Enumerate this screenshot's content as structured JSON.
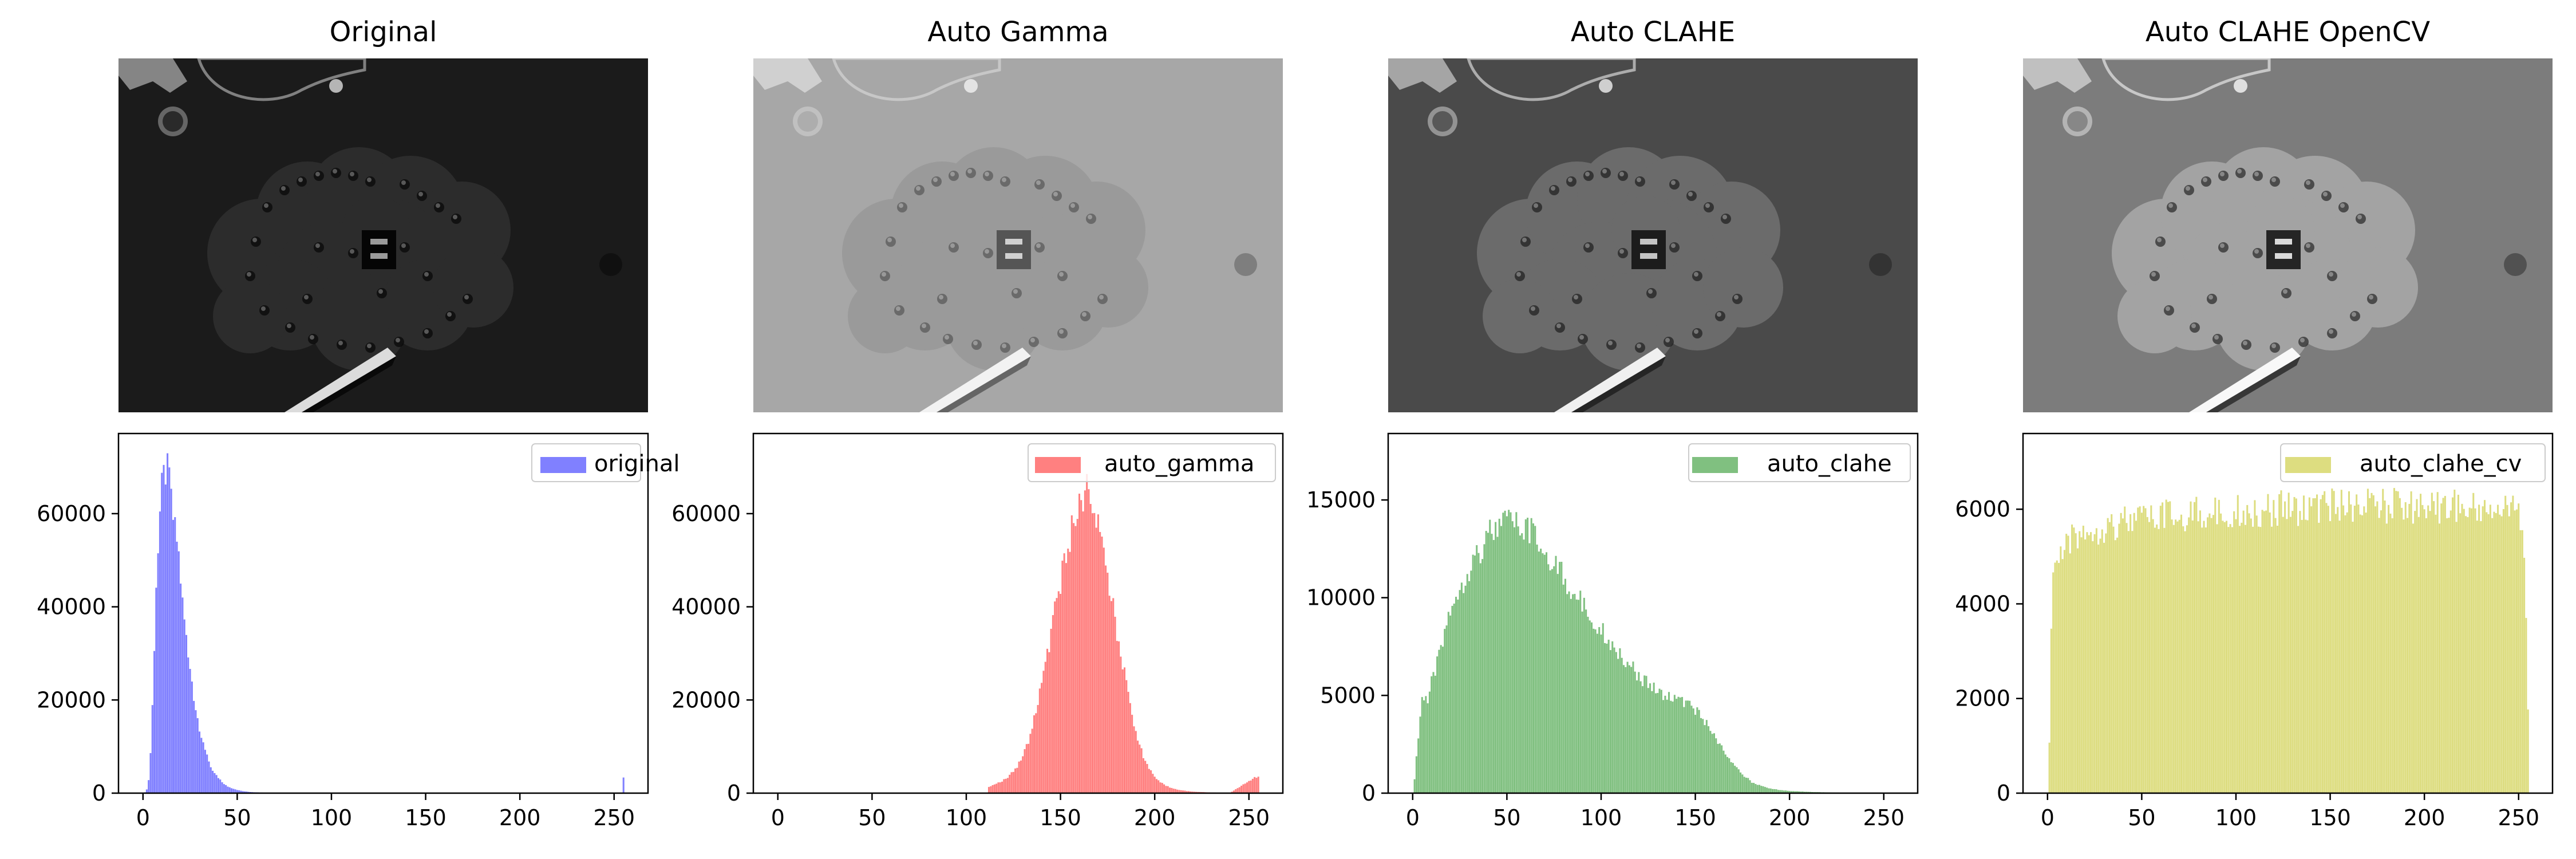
{
  "chart_data": [
    {
      "type": "image",
      "title": "Original",
      "tone": {
        "background": "#1b1b1b",
        "feature": "#2c2c2c",
        "dark": "#050505",
        "light": "#dcdcdc",
        "speckle": "#9a9a9a"
      }
    },
    {
      "type": "image",
      "title": "Auto Gamma",
      "tone": {
        "background": "#a7a7a7",
        "feature": "#9a9a9a",
        "dark": "#555555",
        "light": "#f2f2f2",
        "speckle": "#d0d0d0"
      }
    },
    {
      "type": "image",
      "title": "Auto CLAHE",
      "tone": {
        "background": "#4a4a4a",
        "feature": "#6b6b6b",
        "dark": "#1c1c1c",
        "light": "#f0f0f0",
        "speckle": "#c4c4c4"
      }
    },
    {
      "type": "image",
      "title": "Auto CLAHE OpenCV",
      "tone": {
        "background": "#7c7c7c",
        "feature": "#a3a3a3",
        "dark": "#252525",
        "light": "#f8f8f8",
        "speckle": "#dadada"
      }
    },
    {
      "type": "bar",
      "series": [
        {
          "name": "original",
          "color": "#8080ff",
          "points": [
            [
              1,
              200
            ],
            [
              2,
              800
            ],
            [
              3,
              3000
            ],
            [
              4,
              9000
            ],
            [
              5,
              20000
            ],
            [
              6,
              33000
            ],
            [
              7,
              45000
            ],
            [
              8,
              56000
            ],
            [
              9,
              64000
            ],
            [
              10,
              69000
            ],
            [
              11,
              72000
            ],
            [
              12,
              73500
            ],
            [
              13,
              73000
            ],
            [
              14,
              71500
            ],
            [
              15,
              69000
            ],
            [
              16,
              66000
            ],
            [
              17,
              62500
            ],
            [
              18,
              58500
            ],
            [
              19,
              54000
            ],
            [
              20,
              49500
            ],
            [
              21,
              45000
            ],
            [
              22,
              40500
            ],
            [
              23,
              36500
            ],
            [
              24,
              32500
            ],
            [
              25,
              29000
            ],
            [
              26,
              25500
            ],
            [
              27,
              22500
            ],
            [
              28,
              19800
            ],
            [
              29,
              17300
            ],
            [
              30,
              15000
            ],
            [
              31,
              13000
            ],
            [
              32,
              11300
            ],
            [
              33,
              9800
            ],
            [
              34,
              8500
            ],
            [
              35,
              7300
            ],
            [
              36,
              6300
            ],
            [
              37,
              5400
            ],
            [
              38,
              4600
            ],
            [
              39,
              4000
            ],
            [
              40,
              3400
            ],
            [
              42,
              2500
            ],
            [
              44,
              1800
            ],
            [
              46,
              1300
            ],
            [
              48,
              950
            ],
            [
              50,
              700
            ],
            [
              53,
              450
            ],
            [
              56,
              300
            ],
            [
              60,
              180
            ],
            [
              65,
              100
            ],
            [
              70,
              60
            ],
            [
              80,
              25
            ],
            [
              100,
              10
            ],
            [
              255,
              3800
            ]
          ]
        }
      ],
      "xticks": [
        "0",
        "50",
        "100",
        "150",
        "200",
        "250"
      ],
      "yticks": [
        "0",
        "20000",
        "40000",
        "60000"
      ],
      "xlim": [
        -13,
        268
      ],
      "ylim": [
        0,
        77200
      ],
      "legend": "upper-right"
    },
    {
      "type": "bar",
      "series": [
        {
          "name": "auto_gamma",
          "color": "#ff8080",
          "points": [
            [
              112,
              1500
            ],
            [
              118,
              2500
            ],
            [
              123,
              4000
            ],
            [
              127,
              6000
            ],
            [
              130,
              8500
            ],
            [
              133,
              12000
            ],
            [
              136,
              17000
            ],
            [
              139,
              23000
            ],
            [
              142,
              29000
            ],
            [
              144,
              34000
            ],
            [
              146,
              39000
            ],
            [
              148,
              44000
            ],
            [
              150,
              48000
            ],
            [
              152,
              52000
            ],
            [
              154,
              56000
            ],
            [
              156,
              60000
            ],
            [
              158,
              63000
            ],
            [
              160,
              65000
            ],
            [
              162,
              68000
            ],
            [
              164,
              70000
            ],
            [
              166,
              68000
            ],
            [
              168,
              64000
            ],
            [
              170,
              60000
            ],
            [
              172,
              56000
            ],
            [
              174,
              52000
            ],
            [
              176,
              47000
            ],
            [
              178,
              42000
            ],
            [
              180,
              37000
            ],
            [
              182,
              32000
            ],
            [
              184,
              27000
            ],
            [
              186,
              22000
            ],
            [
              188,
              18000
            ],
            [
              190,
              14000
            ],
            [
              192,
              11000
            ],
            [
              194,
              8500
            ],
            [
              196,
              6500
            ],
            [
              198,
              5000
            ],
            [
              200,
              3800
            ],
            [
              203,
              2500
            ],
            [
              206,
              1700
            ],
            [
              210,
              1000
            ],
            [
              215,
              600
            ],
            [
              220,
              350
            ],
            [
              230,
              150
            ],
            [
              240,
              80
            ],
            [
              255,
              4000
            ]
          ]
        }
      ],
      "xticks": [
        "0",
        "50",
        "100",
        "150",
        "200",
        "250"
      ],
      "yticks": [
        "0",
        "20000",
        "40000",
        "60000"
      ],
      "xlim": [
        -13,
        268
      ],
      "ylim": [
        0,
        77200
      ],
      "legend": "upper-right"
    },
    {
      "type": "bar",
      "series": [
        {
          "name": "auto_clahe",
          "color": "#80c080",
          "points": [
            [
              1,
              800
            ],
            [
              3,
              3000
            ],
            [
              5,
              5200
            ],
            [
              8,
              5000
            ],
            [
              10,
              6000
            ],
            [
              13,
              7000
            ],
            [
              15,
              8000
            ],
            [
              18,
              9300
            ],
            [
              20,
              10000
            ],
            [
              23,
              10800
            ],
            [
              25,
              11300
            ],
            [
              28,
              11800
            ],
            [
              30,
              12300
            ],
            [
              33,
              12800
            ],
            [
              35,
              13200
            ],
            [
              38,
              13600
            ],
            [
              40,
              14000
            ],
            [
              43,
              14300
            ],
            [
              45,
              14500
            ],
            [
              48,
              14600
            ],
            [
              50,
              14700
            ],
            [
              53,
              14700
            ],
            [
              55,
              14600
            ],
            [
              58,
              14500
            ],
            [
              60,
              14300
            ],
            [
              63,
              14100
            ],
            [
              65,
              13800
            ],
            [
              68,
              13500
            ],
            [
              70,
              13200
            ],
            [
              73,
              12900
            ],
            [
              75,
              12500
            ],
            [
              78,
              12100
            ],
            [
              80,
              11700
            ],
            [
              83,
              11300
            ],
            [
              85,
              11000
            ],
            [
              88,
              10600
            ],
            [
              90,
              10300
            ],
            [
              93,
              9900
            ],
            [
              95,
              9600
            ],
            [
              98,
              9200
            ],
            [
              100,
              8900
            ],
            [
              103,
              8500
            ],
            [
              105,
              8200
            ],
            [
              108,
              7900
            ],
            [
              110,
              7600
            ],
            [
              113,
              7300
            ],
            [
              115,
              7000
            ],
            [
              118,
              6700
            ],
            [
              120,
              6400
            ],
            [
              123,
              6100
            ],
            [
              125,
              5900
            ],
            [
              128,
              5700
            ],
            [
              130,
              5500
            ],
            [
              133,
              5400
            ],
            [
              135,
              5300
            ],
            [
              138,
              5200
            ],
            [
              140,
              5100
            ],
            [
              143,
              5000
            ],
            [
              145,
              4900
            ],
            [
              148,
              4700
            ],
            [
              150,
              4500
            ],
            [
              153,
              4200
            ],
            [
              155,
              3900
            ],
            [
              158,
              3500
            ],
            [
              160,
              3100
            ],
            [
              163,
              2700
            ],
            [
              165,
              2300
            ],
            [
              168,
              1900
            ],
            [
              170,
              1550
            ],
            [
              173,
              1250
            ],
            [
              175,
              1000
            ],
            [
              178,
              780
            ],
            [
              180,
              600
            ],
            [
              185,
              380
            ],
            [
              190,
              250
            ],
            [
              195,
              170
            ],
            [
              200,
              120
            ],
            [
              210,
              70
            ],
            [
              220,
              40
            ],
            [
              235,
              20
            ],
            [
              250,
              10
            ]
          ]
        }
      ],
      "xticks": [
        "0",
        "50",
        "100",
        "150",
        "200",
        "250"
      ],
      "yticks": [
        "0",
        "5000",
        "10000",
        "15000"
      ],
      "xlim": [
        -13,
        268
      ],
      "ylim": [
        0,
        18400
      ],
      "legend": "upper-right"
    },
    {
      "type": "bar",
      "series": [
        {
          "name": "auto_clahe_cv",
          "color": "#dddd80",
          "points": [
            [
              1,
              1200
            ],
            [
              2,
              3500
            ],
            [
              3,
              5000
            ],
            [
              5,
              5200
            ],
            [
              10,
              5500
            ],
            [
              15,
              5800
            ],
            [
              20,
              5900
            ],
            [
              30,
              6000
            ],
            [
              40,
              6100
            ],
            [
              50,
              6150
            ],
            [
              60,
              6200
            ],
            [
              70,
              6250
            ],
            [
              80,
              6300
            ],
            [
              90,
              6300
            ],
            [
              100,
              6350
            ],
            [
              110,
              6350
            ],
            [
              120,
              6400
            ],
            [
              130,
              6400
            ],
            [
              140,
              6400
            ],
            [
              150,
              6450
            ],
            [
              160,
              6450
            ],
            [
              170,
              6450
            ],
            [
              180,
              6450
            ],
            [
              190,
              6450
            ],
            [
              200,
              6450
            ],
            [
              210,
              6450
            ],
            [
              220,
              6400
            ],
            [
              230,
              6400
            ],
            [
              240,
              6400
            ],
            [
              245,
              6350
            ],
            [
              250,
              6300
            ],
            [
              252,
              5800
            ],
            [
              254,
              4200
            ],
            [
              255,
              2000
            ]
          ]
        }
      ],
      "xticks": [
        "0",
        "50",
        "100",
        "150",
        "200",
        "250"
      ],
      "yticks": [
        "0",
        "2000",
        "4000",
        "6000"
      ],
      "xlim": [
        -13,
        268
      ],
      "ylim": [
        0,
        7600
      ],
      "legend": "upper-right"
    }
  ]
}
